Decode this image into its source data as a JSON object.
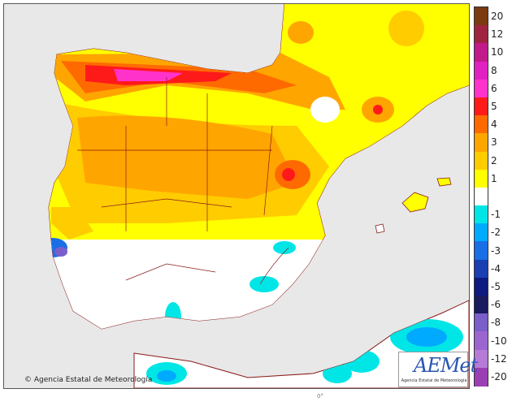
{
  "map": {
    "background_color": "#e8e8e8",
    "land_color": "#ffffff",
    "border_color": "#8b1a1a"
  },
  "legend": {
    "entries": [
      {
        "label": "20",
        "color": "#7b3a10"
      },
      {
        "label": "12",
        "color": "#a0243f"
      },
      {
        "label": "10",
        "color": "#c21a8a"
      },
      {
        "label": "8",
        "color": "#e020c0"
      },
      {
        "label": "6",
        "color": "#ff33cc"
      },
      {
        "label": "5",
        "color": "#ff1a1a"
      },
      {
        "label": "4",
        "color": "#ff6a00"
      },
      {
        "label": "3",
        "color": "#ffa500"
      },
      {
        "label": "2",
        "color": "#ffcc00"
      },
      {
        "label": "1",
        "color": "#ffff00"
      },
      {
        "label": "",
        "color": "#ffffff"
      },
      {
        "label": "-1",
        "color": "#00e5e5"
      },
      {
        "label": "-2",
        "color": "#00aaff"
      },
      {
        "label": "-3",
        "color": "#1a6ee6"
      },
      {
        "label": "-4",
        "color": "#1a3fb3"
      },
      {
        "label": "-5",
        "color": "#0d1a80"
      },
      {
        "label": "-6",
        "color": "#1a1a5e"
      },
      {
        "label": "-8",
        "color": "#7a5ec9"
      },
      {
        "label": "-10",
        "color": "#9c66d1"
      },
      {
        "label": "-12",
        "color": "#b57bd6"
      },
      {
        "label": "-20",
        "color": "#9b3fb5"
      }
    ]
  },
  "copyright": "Agencia Estatal de Meteorología",
  "logo": {
    "name": "AEMet",
    "subtitle": "Agencia Estatal de Meteorología"
  },
  "bottom_label": "0°"
}
